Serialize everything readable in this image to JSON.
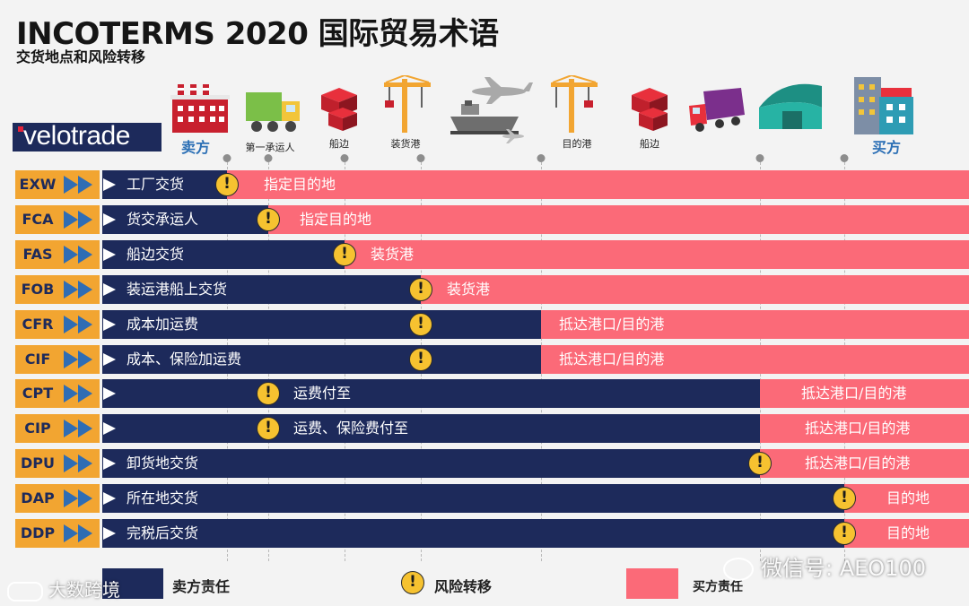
{
  "header": {
    "title": "INCOTERMS 2020 国际贸易术语",
    "subtitle": "交货地点和风险转移"
  },
  "brand": {
    "logo_text": "velotrade"
  },
  "stations": [
    {
      "label": "卖方",
      "icon": "factory-icon",
      "style": "big"
    },
    {
      "label": "第一承运人",
      "icon": "truck-icon",
      "style": "small"
    },
    {
      "label": "船边",
      "icon": "containers-icon",
      "style": "small"
    },
    {
      "label": "装货港",
      "icon": "crane-icon",
      "style": "small"
    },
    {
      "label": "",
      "icon": "ship-plane-icon",
      "style": "small"
    },
    {
      "label": "目的港",
      "icon": "crane-icon",
      "style": "small"
    },
    {
      "label": "船边",
      "icon": "containers-icon",
      "style": "small"
    },
    {
      "label": "",
      "icon": "delivery-truck-icon",
      "style": "small"
    },
    {
      "label": "",
      "icon": "warehouse-icon",
      "style": "small"
    },
    {
      "label": "买方",
      "icon": "buildings-icon",
      "style": "big"
    }
  ],
  "terms": [
    {
      "code": "EXW",
      "seller_text": "工厂交货",
      "buyer_text": "指定目的地"
    },
    {
      "code": "FCA",
      "seller_text": "货交承运人",
      "buyer_text": "指定目的地"
    },
    {
      "code": "FAS",
      "seller_text": "船边交货",
      "buyer_text": "装货港"
    },
    {
      "code": "FOB",
      "seller_text": "装运港船上交货",
      "buyer_text": "装货港"
    },
    {
      "code": "CFR",
      "seller_text": "成本加运费",
      "buyer_text": "抵达港口/目的港"
    },
    {
      "code": "CIF",
      "seller_text": "成本、保险加运费",
      "buyer_text": "抵达港口/目的港"
    },
    {
      "code": "CPT",
      "seller_text": "运费付至",
      "buyer_text": "抵达港口/目的港"
    },
    {
      "code": "CIP",
      "seller_text": "运费、保险费付至",
      "buyer_text": "抵达港口/目的港"
    },
    {
      "code": "DPU",
      "seller_text": "卸货地交货",
      "buyer_text": "抵达港口/目的港"
    },
    {
      "code": "DAP",
      "seller_text": "所在地交货",
      "buyer_text": "目的地"
    },
    {
      "code": "DDP",
      "seller_text": "完税后交货",
      "buyer_text": "目的地"
    }
  ],
  "legend": {
    "seller": "卖方责任",
    "risk": "风险转移",
    "buyer": "买方责任"
  },
  "watermarks": {
    "wechat": "微信号: AEO100",
    "bottom_left": "大数跨境"
  },
  "colors": {
    "seller": "#1d2a5b",
    "buyer": "#fb6a78",
    "code_bg": "#f2a531",
    "arrow": "#2f6db4",
    "warning": "#f6c230",
    "background": "#f3f3f3"
  }
}
